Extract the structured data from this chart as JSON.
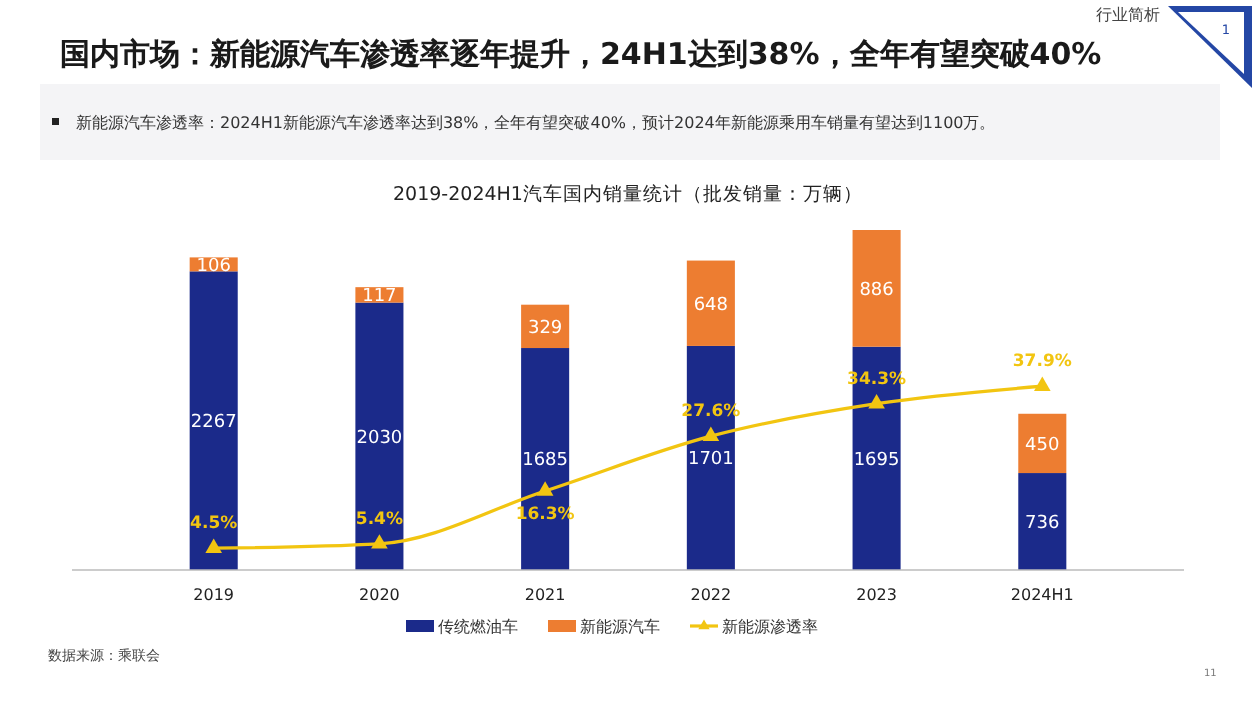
{
  "chart_data": {
    "type": "bar",
    "title": "国内市场：新能源汽车渗透率逐年提升，24H1达到38%，全年有望突破40%",
    "subtitle": "新能源汽车渗透率：2024H1新能源汽车渗透率达到38%，全年有望突破40%，预计2024年新能源乘用车销量有望达到1100万。",
    "annotations": [
      "2019-2024H1汽车国内销量统计（批发销量：万辆）",
      "数据来源：乘联会",
      "行业简析",
      "1",
      "11"
    ],
    "categories": [
      "2019",
      "2020",
      "2021",
      "2022",
      "2023",
      "2024H1"
    ],
    "stacked": true,
    "data_labels": true,
    "legend": "bottom",
    "marker": "triangle",
    "series": [
      {
        "name": "传统燃油车",
        "color": "#1b2a8a",
        "values": [
          2267,
          2030,
          1685,
          1701,
          1695,
          736
        ]
      },
      {
        "name": "新能源汽车",
        "color": "#ed7d31",
        "values": [
          106,
          117,
          329,
          648,
          886,
          450
        ]
      },
      {
        "name": "新能源渗透率",
        "type": "line",
        "axis": "y2",
        "color": "#f2c511",
        "values": [
          4.5,
          5.4,
          16.3,
          27.6,
          34.3,
          37.9
        ],
        "value_labels": [
          "4.5%",
          "5.4%",
          "16.3%",
          "27.6%",
          "34.3%",
          "37.9%"
        ]
      }
    ]
  }
}
